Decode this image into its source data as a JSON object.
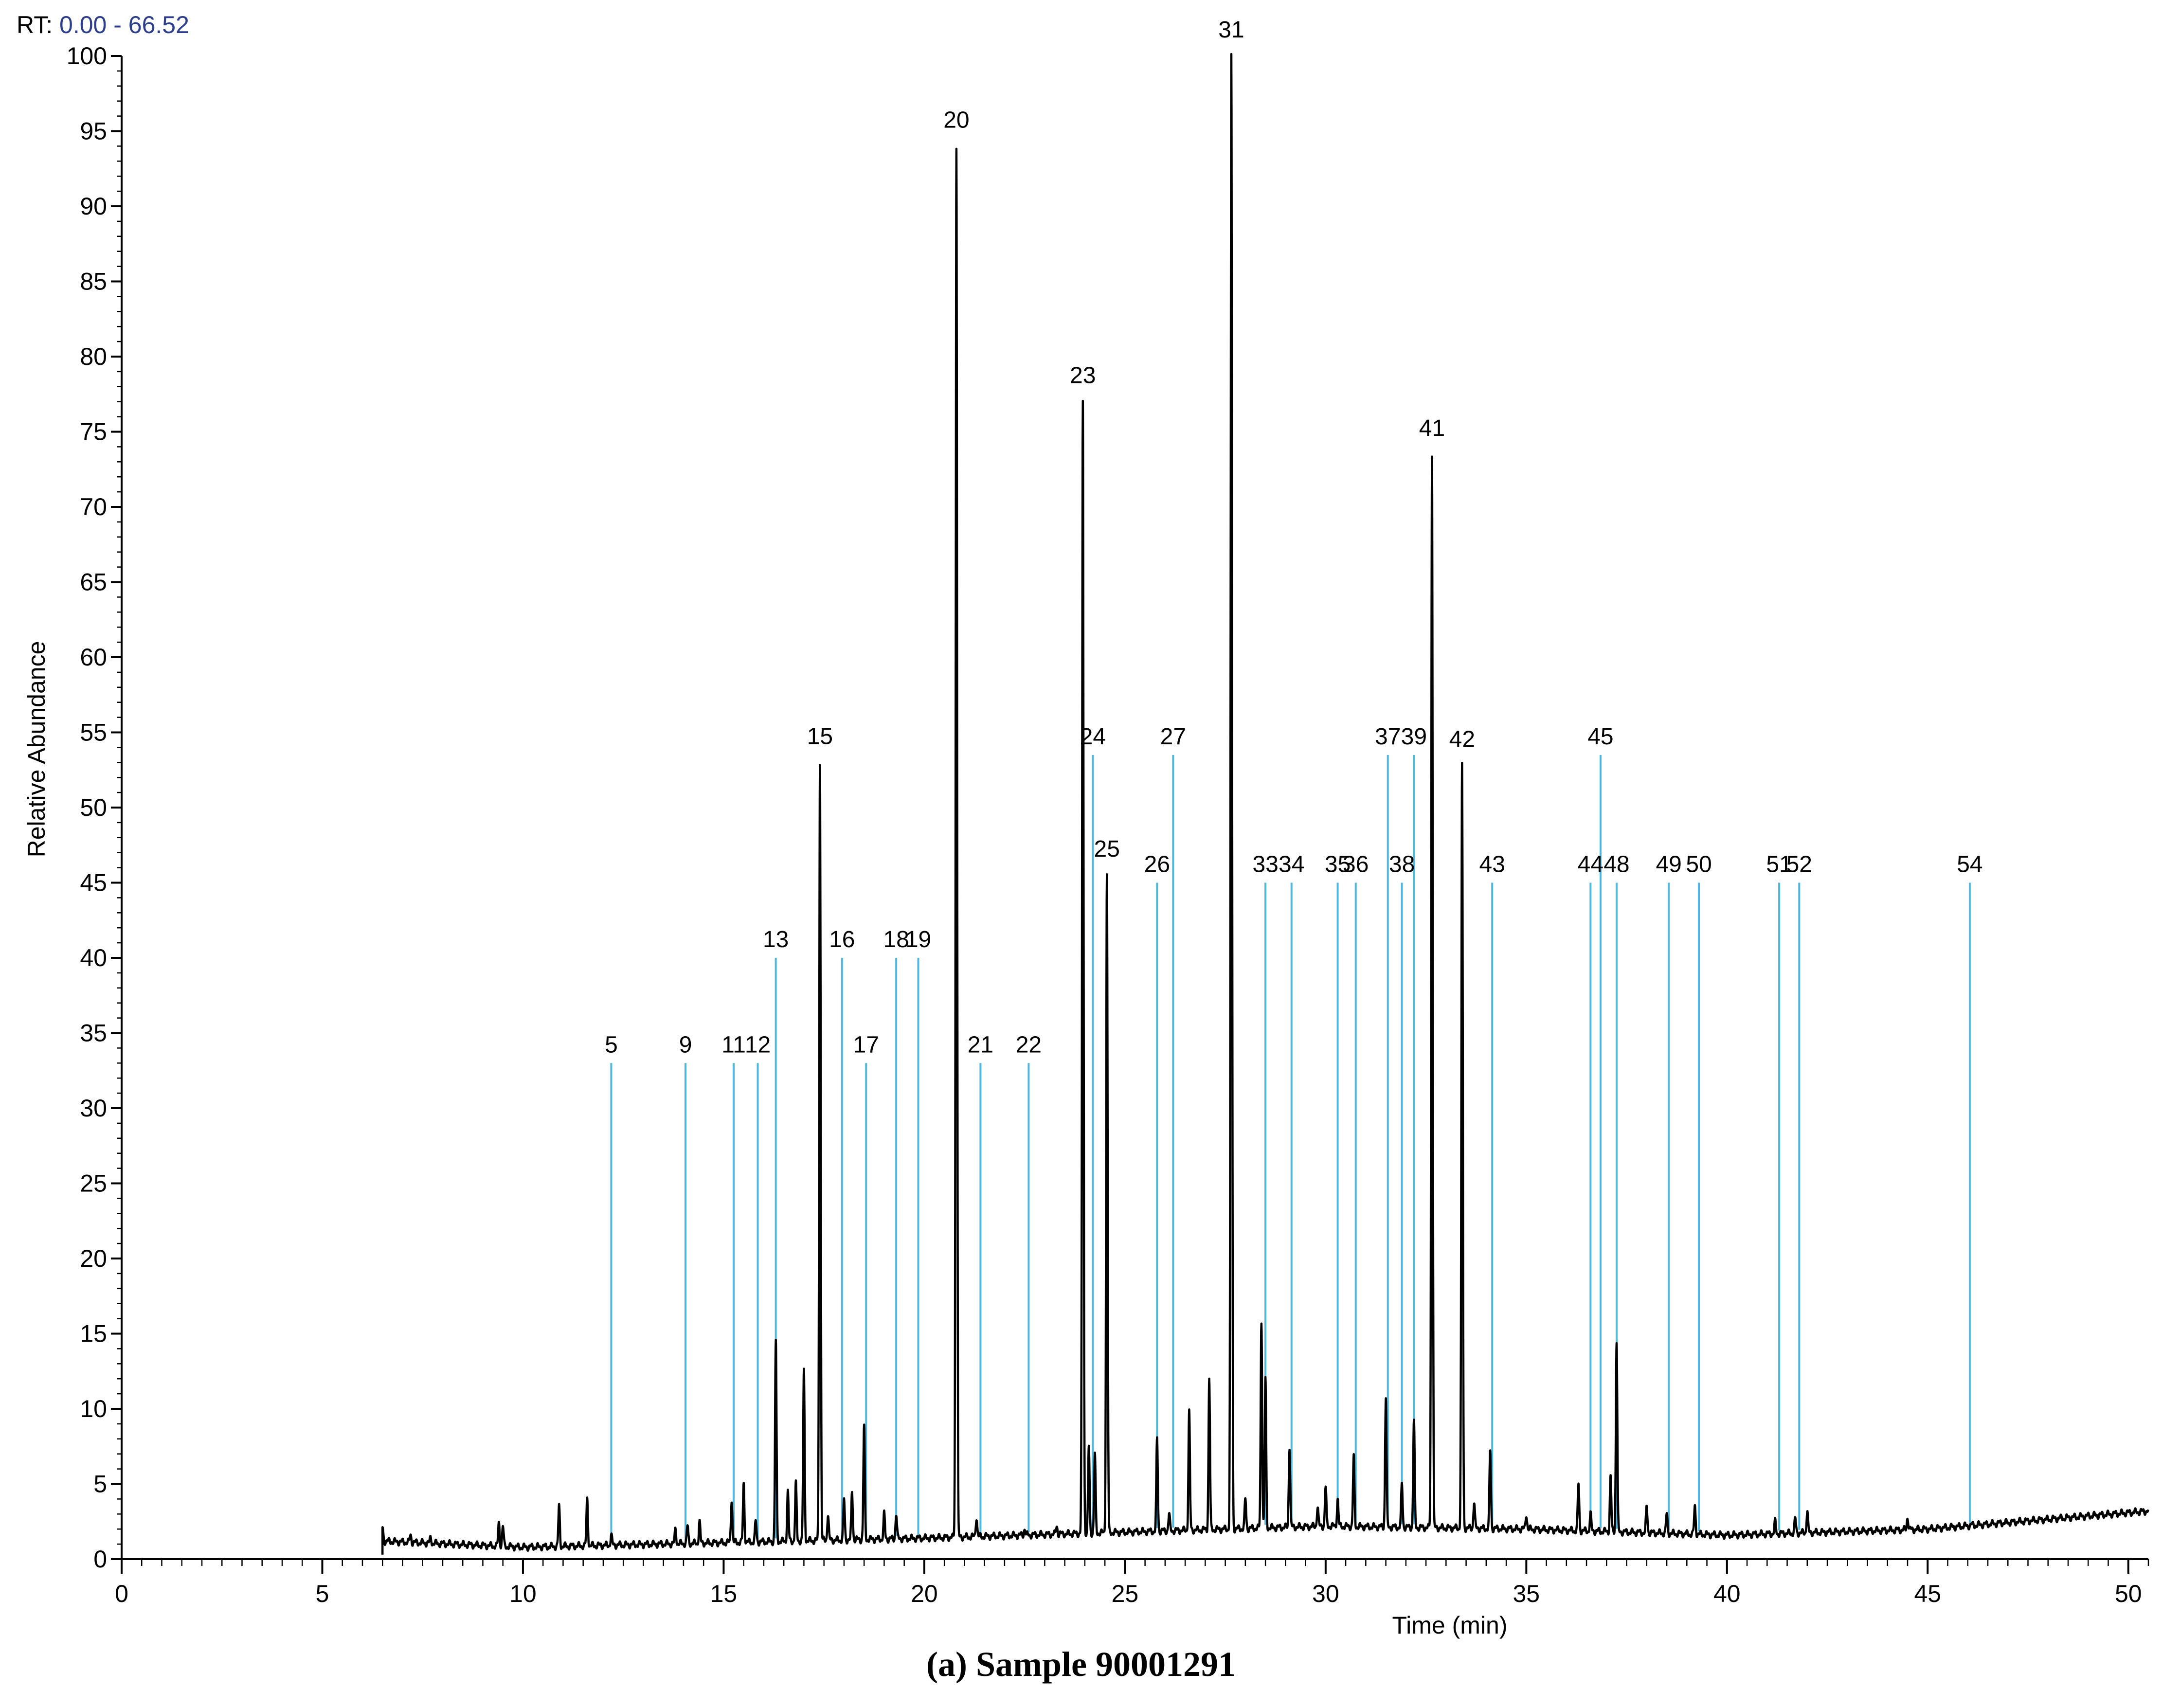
{
  "rt_range": {
    "label": "RT:",
    "value": "0.00 - 66.52"
  },
  "caption": {
    "tag": "(a)",
    "text": "Sample 90001291"
  },
  "chart_data": {
    "type": "line",
    "title": "",
    "xlabel": "Time (min)",
    "ylabel": "Relative Abundance",
    "xlim": [
      0,
      50.5
    ],
    "ylim": [
      0,
      100
    ],
    "x_ticks": [
      0,
      5,
      10,
      15,
      20,
      25,
      30,
      35,
      40,
      45,
      50
    ],
    "y_ticks": [
      0,
      5,
      10,
      15,
      20,
      25,
      30,
      35,
      40,
      45,
      50,
      55,
      60,
      65,
      70,
      75,
      80,
      85,
      90,
      95,
      100
    ],
    "trace_color": "#000000",
    "marker_color": "#4fb8de",
    "baseline": [
      [
        6.5,
        1.2
      ],
      [
        10,
        0.8
      ],
      [
        15,
        1.1
      ],
      [
        20,
        1.4
      ],
      [
        25,
        1.8
      ],
      [
        30,
        2.2
      ],
      [
        35,
        2.0
      ],
      [
        40,
        1.6
      ],
      [
        45,
        2.0
      ],
      [
        50.5,
        3.2
      ]
    ],
    "peaks": [
      [
        6.5,
        2.1
      ],
      [
        7.2,
        1.6
      ],
      [
        7.7,
        1.4
      ],
      [
        9.4,
        2.4
      ],
      [
        9.5,
        2.2
      ],
      [
        10.9,
        3.5
      ],
      [
        11.6,
        4.0
      ],
      [
        12.2,
        1.6
      ],
      [
        13.8,
        2.0
      ],
      [
        14.1,
        2.2
      ],
      [
        14.4,
        2.5
      ],
      [
        15.2,
        4.0
      ],
      [
        15.5,
        5.0
      ],
      [
        15.8,
        2.5
      ],
      [
        16.3,
        14.5
      ],
      [
        16.6,
        4.5
      ],
      [
        16.8,
        5.0
      ],
      [
        17.0,
        12.5
      ],
      [
        17.4,
        53.0
      ],
      [
        17.6,
        3.0
      ],
      [
        18.0,
        4.0
      ],
      [
        18.2,
        4.5
      ],
      [
        18.5,
        8.8
      ],
      [
        19.0,
        3.0
      ],
      [
        19.3,
        3.0
      ],
      [
        20.8,
        94.0
      ],
      [
        21.3,
        2.8
      ],
      [
        22.5,
        2.0
      ],
      [
        23.3,
        2.2
      ],
      [
        23.95,
        77.0
      ],
      [
        24.1,
        7.5
      ],
      [
        24.25,
        7.0
      ],
      [
        24.55,
        45.5
      ],
      [
        25.8,
        8.0
      ],
      [
        26.1,
        3.0
      ],
      [
        26.6,
        9.8
      ],
      [
        27.1,
        12.0
      ],
      [
        27.65,
        100.0
      ],
      [
        28.0,
        4.0
      ],
      [
        28.4,
        15.8
      ],
      [
        28.5,
        12.0
      ],
      [
        29.1,
        7.5
      ],
      [
        29.8,
        3.5
      ],
      [
        30.0,
        4.8
      ],
      [
        30.3,
        4.0
      ],
      [
        30.7,
        6.8
      ],
      [
        31.5,
        10.8
      ],
      [
        31.9,
        5.0
      ],
      [
        32.2,
        9.2
      ],
      [
        32.65,
        73.5
      ],
      [
        33.4,
        52.8
      ],
      [
        33.7,
        3.8
      ],
      [
        34.1,
        7.2
      ],
      [
        35.0,
        3.0
      ],
      [
        36.3,
        5.0
      ],
      [
        36.6,
        3.0
      ],
      [
        37.1,
        5.5
      ],
      [
        37.25,
        14.5
      ],
      [
        38.0,
        3.5
      ],
      [
        38.5,
        3.0
      ],
      [
        39.2,
        3.5
      ],
      [
        41.2,
        2.5
      ],
      [
        41.7,
        2.7
      ],
      [
        42.0,
        3.2
      ],
      [
        44.5,
        2.8
      ],
      [
        46.1,
        2.3
      ]
    ],
    "peak_labels": [
      {
        "label": "20",
        "x": 20.8,
        "y": 94.0,
        "style": "apex"
      },
      {
        "label": "23",
        "x": 23.95,
        "y": 77.0,
        "style": "apex"
      },
      {
        "label": "31",
        "x": 27.65,
        "y": 100.0,
        "style": "apex"
      },
      {
        "label": "41",
        "x": 32.65,
        "y": 73.5,
        "style": "apex"
      },
      {
        "label": "15",
        "x": 17.4,
        "y": 53.0,
        "style": "apex"
      },
      {
        "label": "42",
        "x": 33.4,
        "y": 52.8,
        "style": "apex"
      },
      {
        "label": "25",
        "x": 24.55,
        "y": 45.5,
        "style": "apex"
      },
      {
        "label": "5",
        "x": 12.2,
        "y": 33.0,
        "style": "marker"
      },
      {
        "label": "9",
        "x": 14.05,
        "y": 33.0,
        "style": "marker"
      },
      {
        "label": "11",
        "x": 15.25,
        "y": 33.0,
        "style": "marker"
      },
      {
        "label": "12",
        "x": 15.85,
        "y": 33.0,
        "style": "marker"
      },
      {
        "label": "13",
        "x": 16.3,
        "y": 40.0,
        "style": "marker"
      },
      {
        "label": "16",
        "x": 17.95,
        "y": 40.0,
        "style": "marker"
      },
      {
        "label": "17",
        "x": 18.55,
        "y": 33.0,
        "style": "marker"
      },
      {
        "label": "18",
        "x": 19.3,
        "y": 40.0,
        "style": "marker"
      },
      {
        "label": "19",
        "x": 19.85,
        "y": 40.0,
        "style": "marker"
      },
      {
        "label": "21",
        "x": 21.4,
        "y": 33.0,
        "style": "marker"
      },
      {
        "label": "22",
        "x": 22.6,
        "y": 33.0,
        "style": "marker"
      },
      {
        "label": "24",
        "x": 24.2,
        "y": 53.5,
        "style": "marker"
      },
      {
        "label": "26",
        "x": 25.8,
        "y": 45.0,
        "style": "marker"
      },
      {
        "label": "27",
        "x": 26.2,
        "y": 53.5,
        "style": "marker"
      },
      {
        "label": "33",
        "x": 28.5,
        "y": 45.0,
        "style": "marker"
      },
      {
        "label": "34",
        "x": 29.15,
        "y": 45.0,
        "style": "marker"
      },
      {
        "label": "35",
        "x": 30.3,
        "y": 45.0,
        "style": "marker"
      },
      {
        "label": "36",
        "x": 30.75,
        "y": 45.0,
        "style": "marker"
      },
      {
        "label": "37",
        "x": 31.55,
        "y": 53.5,
        "style": "marker"
      },
      {
        "label": "38",
        "x": 31.9,
        "y": 45.0,
        "style": "marker"
      },
      {
        "label": "39",
        "x": 32.2,
        "y": 53.5,
        "style": "marker"
      },
      {
        "label": "43",
        "x": 34.15,
        "y": 45.0,
        "style": "marker"
      },
      {
        "label": "44",
        "x": 36.6,
        "y": 45.0,
        "style": "marker"
      },
      {
        "label": "45",
        "x": 36.85,
        "y": 53.5,
        "style": "marker"
      },
      {
        "label": "48",
        "x": 37.25,
        "y": 45.0,
        "style": "marker"
      },
      {
        "label": "49",
        "x": 38.55,
        "y": 45.0,
        "style": "marker"
      },
      {
        "label": "50",
        "x": 39.3,
        "y": 45.0,
        "style": "marker"
      },
      {
        "label": "51",
        "x": 41.3,
        "y": 45.0,
        "style": "marker"
      },
      {
        "label": "52",
        "x": 41.8,
        "y": 45.0,
        "style": "marker"
      },
      {
        "label": "54",
        "x": 46.05,
        "y": 45.0,
        "style": "marker"
      }
    ]
  }
}
